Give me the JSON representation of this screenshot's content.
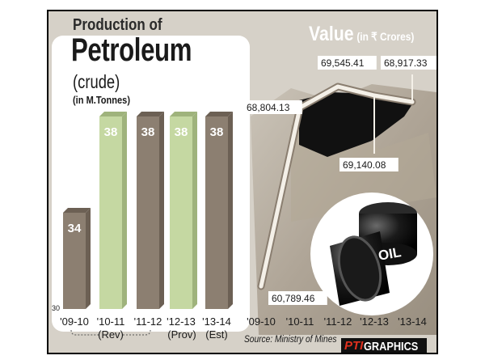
{
  "chart_data": [
    {
      "type": "bar",
      "title": "Production of",
      "title_main": "Petroleum",
      "subtitle": "(crude)",
      "unit": "(in M.Tonnes)",
      "categories": [
        "'09-10",
        "'10-11",
        "'11-12",
        "'12-13",
        "'13-14"
      ],
      "category_notes": [
        "(Rev)",
        "(Prov)",
        "(Est)"
      ],
      "values": [
        34,
        38,
        38,
        38,
        38
      ],
      "value_labels": [
        "34",
        "38",
        "38",
        "38",
        "38"
      ],
      "axis_min_label": "30",
      "ylim": [
        30,
        38
      ]
    },
    {
      "type": "line",
      "title": "Value",
      "unit": "(in ₹ Crores)",
      "categories": [
        "'09-10",
        "'10-11",
        "'11-12",
        "'12-13",
        "'13-14"
      ],
      "values": [
        60789.46,
        68804.13,
        69545.41,
        69140.08,
        68917.33
      ],
      "value_labels": [
        "60,789.46",
        "68,804.13",
        "69,545.41",
        "69,140.08",
        "68,917.33"
      ]
    }
  ],
  "colors": {
    "bar_dark": "#8c7f71",
    "bar_light": "#c5d8a2",
    "line": "#f4f0e8",
    "drum": "#111111",
    "drum_label": "OIL"
  },
  "source": "Source: Ministry of Mines",
  "credit": {
    "brand": "PTI",
    "text": "GRAPHICS"
  }
}
